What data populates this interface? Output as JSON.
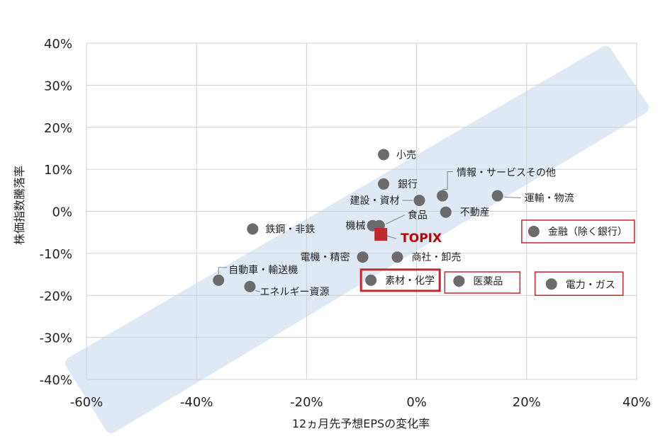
{
  "chart_data": {
    "type": "scatter",
    "xlabel": "12ヵ月先予想EPSの変化率",
    "ylabel": "株価指数騰落率",
    "xlim": [
      -0.6,
      0.4
    ],
    "ylim": [
      -0.4,
      0.4
    ],
    "x_ticks": [
      -0.6,
      -0.4,
      -0.2,
      0,
      0.2,
      0.4
    ],
    "x_tick_labels": [
      "-60%",
      "-40%",
      "-20%",
      "0%",
      "20%",
      "40%"
    ],
    "y_ticks": [
      0.4,
      0.3,
      0.2,
      0.1,
      0,
      -0.1,
      -0.2,
      -0.3,
      -0.4
    ],
    "y_tick_labels": [
      "40%",
      "30%",
      "20%",
      "10%",
      "0%",
      "-10%",
      "-20%",
      "-30%",
      "-40%"
    ],
    "grid": true,
    "colors": {
      "point": "#6b6b6b",
      "topix": "#c0282d",
      "highlight_box": "#c0282d",
      "band": "#dfe9f5",
      "grid": "#d0d0d0"
    },
    "points": [
      {
        "label": "小売",
        "x": -0.06,
        "y": 0.135
      },
      {
        "label": "銀行",
        "x": -0.06,
        "y": 0.065
      },
      {
        "label": "情報・サービスその他",
        "x": 0.047,
        "y": 0.037
      },
      {
        "label": "運輸・物流",
        "x": 0.147,
        "y": 0.037
      },
      {
        "label": "建設・資材",
        "x": 0.005,
        "y": 0.026
      },
      {
        "label": "不動産",
        "x": 0.053,
        "y": -0.002
      },
      {
        "label": "食品",
        "x": -0.068,
        "y": -0.034
      },
      {
        "label": "機械",
        "x": -0.08,
        "y": -0.034
      },
      {
        "label": "鉄鋼・非鉄",
        "x": -0.298,
        "y": -0.042
      },
      {
        "label": "金融（除く銀行）",
        "x": 0.213,
        "y": -0.048,
        "highlight": true
      },
      {
        "label": "電機・精密",
        "x": -0.098,
        "y": -0.109
      },
      {
        "label": "商社・卸売",
        "x": -0.035,
        "y": -0.109
      },
      {
        "label": "自動車・輸送機",
        "x": -0.36,
        "y": -0.164
      },
      {
        "label": "エネルギー資源",
        "x": -0.303,
        "y": -0.179
      },
      {
        "label": "素材・化学",
        "x": -0.083,
        "y": -0.164,
        "highlight": true
      },
      {
        "label": "医薬品",
        "x": 0.077,
        "y": -0.166,
        "highlight": true
      },
      {
        "label": "電力・ガス",
        "x": 0.245,
        "y": -0.173,
        "highlight": true
      }
    ],
    "topix": {
      "label": "TOPIX",
      "x": -0.065,
      "y": -0.055
    }
  }
}
